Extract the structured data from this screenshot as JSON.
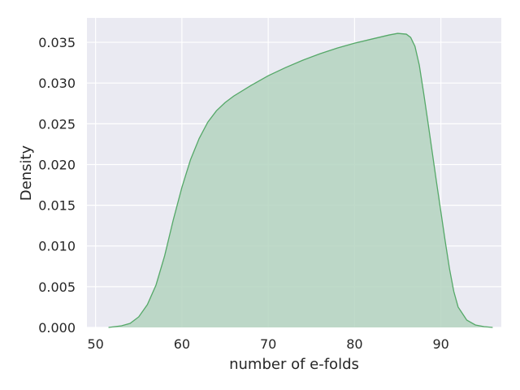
{
  "chart_data": {
    "type": "area",
    "title": "",
    "xlabel": "number of e-folds",
    "ylabel": "Density",
    "xlim": [
      49,
      97
    ],
    "ylim": [
      0,
      0.038
    ],
    "x_ticks": [
      50,
      60,
      70,
      80,
      90
    ],
    "x_tick_labels": [
      "50",
      "60",
      "70",
      "80",
      "90"
    ],
    "y_ticks": [
      0.0,
      0.005,
      0.01,
      0.015,
      0.02,
      0.025,
      0.03,
      0.035
    ],
    "y_tick_labels": [
      "0.000",
      "0.005",
      "0.010",
      "0.015",
      "0.020",
      "0.025",
      "0.030",
      "0.035"
    ],
    "grid": true,
    "background_color": "#eaeaf2",
    "grid_color": "#ffffff",
    "series": [
      {
        "fill_color": "#b4d4c0",
        "line_color": "#55a868",
        "x": [
          51.5,
          53,
          54,
          55,
          56,
          57,
          58,
          59,
          60,
          61,
          62,
          63,
          64,
          65,
          66,
          68,
          70,
          72,
          74,
          76,
          78,
          80,
          82,
          84,
          85,
          86,
          86.5,
          87,
          87.5,
          88,
          88.5,
          89,
          89.5,
          90,
          90.5,
          91,
          91.5,
          92,
          93,
          94,
          95,
          96
        ],
        "y": [
          0.0,
          0.0002,
          0.0005,
          0.0013,
          0.0028,
          0.0052,
          0.0088,
          0.0132,
          0.0172,
          0.0206,
          0.0232,
          0.0252,
          0.0266,
          0.0276,
          0.0284,
          0.0297,
          0.0309,
          0.0319,
          0.0328,
          0.0336,
          0.0343,
          0.0349,
          0.0354,
          0.0359,
          0.0361,
          0.036,
          0.0356,
          0.0345,
          0.0322,
          0.0288,
          0.0252,
          0.0215,
          0.0178,
          0.0142,
          0.0106,
          0.0072,
          0.0044,
          0.0025,
          0.0009,
          0.0003,
          0.0001,
          0.0
        ]
      }
    ]
  }
}
